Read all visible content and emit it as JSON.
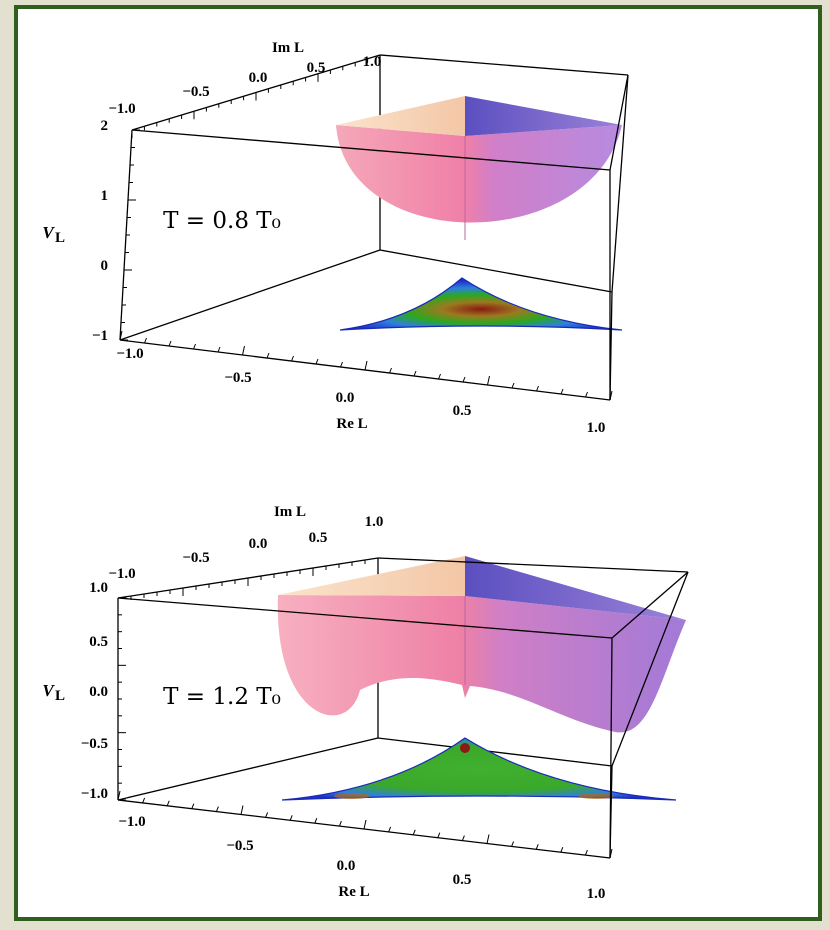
{
  "chart_data": [
    {
      "type": "surface3d",
      "annotation": "T = 0.8 T₀",
      "xlabel": "Re L",
      "ylabel": "Im L",
      "zlabel": "V_L",
      "xticks": [
        "−1.0",
        "−0.5",
        "0.0",
        "0.5",
        "1.0"
      ],
      "yticks": [
        "−1.0",
        "−0.5",
        "0.0",
        "0.5",
        "1.0"
      ],
      "zticks": [
        "2",
        "1",
        "0",
        "−1"
      ],
      "zlim": [
        -1,
        2
      ],
      "surface": "single well, minimum at L = 0",
      "contour_projection": true
    },
    {
      "type": "surface3d",
      "annotation": "T = 1.2 T₀",
      "xlabel": "Re L",
      "ylabel": "Im L",
      "zlabel": "V_L",
      "xticks": [
        "−1.0",
        "−0.5",
        "0.0",
        "0.5",
        "1.0"
      ],
      "yticks": [
        "−1.0",
        "−0.5",
        "0.0",
        "0.5",
        "1.0"
      ],
      "zticks": [
        "1.0",
        "0.5",
        "0.0",
        "−0.5",
        "−1.0"
      ],
      "zlim": [
        -1,
        1
      ],
      "surface": "three minima near corners, local maximum at L = 0",
      "contour_projection": true
    }
  ]
}
